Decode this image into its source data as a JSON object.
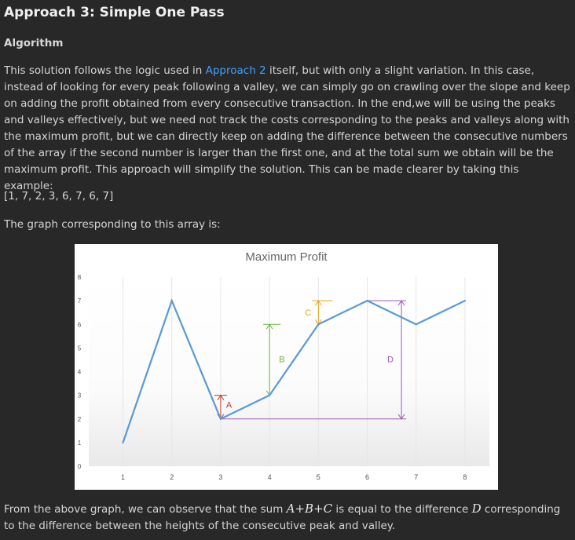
{
  "heading": "Approach 3: Simple One Pass",
  "subheading": "Algorithm",
  "para": {
    "before_link": "This solution follows the logic used in ",
    "link": "Approach 2",
    "after_link": " itself, but with only a slight variation. In this case, instead of looking for every peak following a valley, we can simply go on crawling over the slope and keep on adding the profit obtained from every consecutive transaction. In the end,we will be using the peaks and valleys effectively, but we need not track the costs corresponding to the peaks and valleys along with the maximum profit, but we can directly keep on adding the difference between the consecutive numbers of the array if the second number is larger than the first one, and at the total sum we obtain will be the maximum profit. This approach will simplify the solution. This can be made clearer by taking this example:"
  },
  "array_example": "[1, 7, 2, 3, 6, 7, 6, 7]",
  "graph_lead": "The graph corresponding to this array is:",
  "conclusion": {
    "t1": "From the above graph, we can observe that the sum ",
    "math_sum": "A+B+C",
    "t2": " is equal to the difference ",
    "math_d": "D",
    "t3": " corresponding to the difference between the heights of the consecutive peak and valley."
  },
  "chart_data": {
    "type": "line",
    "title": "Maximum Profit",
    "x": [
      1,
      2,
      3,
      4,
      5,
      6,
      7,
      8
    ],
    "series": [
      {
        "values": [
          1,
          7,
          2,
          3,
          6,
          7,
          6,
          7
        ]
      }
    ],
    "xlim": [
      0.3,
      8.5
    ],
    "ylim": [
      0,
      8
    ],
    "yticks": [
      0,
      1,
      2,
      3,
      4,
      5,
      6,
      7,
      8
    ],
    "grid": "vertical",
    "annotations": [
      {
        "label": "A",
        "x": 3,
        "from": 2,
        "to": 3,
        "color": "#c0392b"
      },
      {
        "label": "B",
        "x": 4,
        "from": 3,
        "to": 6,
        "color": "#6db33f"
      },
      {
        "label": "C",
        "x": 5,
        "from": 6,
        "to": 7,
        "color": "#e8a317"
      },
      {
        "label": "D",
        "x": 6.7,
        "from": 2,
        "to": 7,
        "color": "#9b59b6"
      }
    ]
  }
}
